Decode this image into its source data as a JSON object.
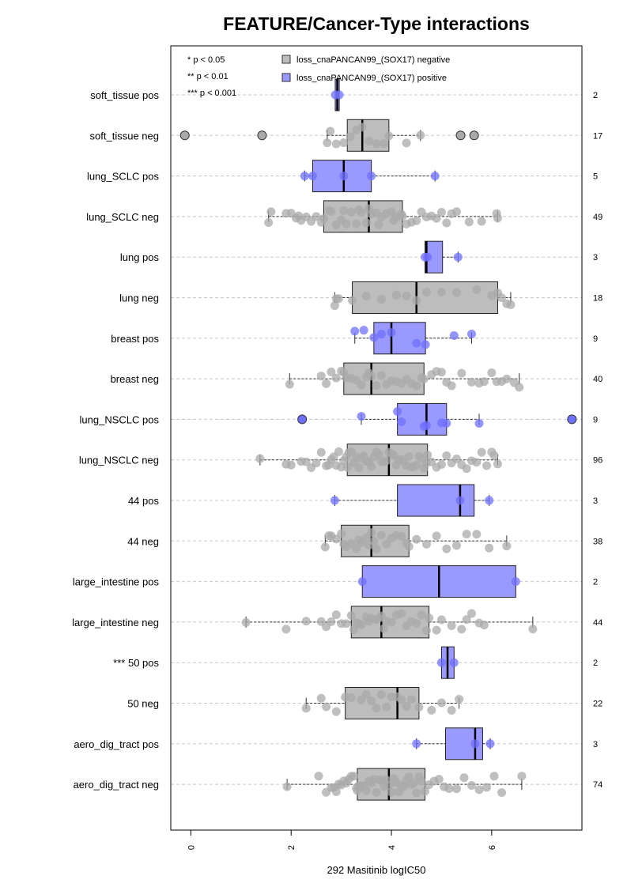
{
  "chart_data": {
    "type": "boxplot",
    "title": "FEATURE/Cancer-Type interactions",
    "xlabel": "292 Masitinib logIC50",
    "ylabel": "",
    "xlim": [
      -0.4,
      7.8
    ],
    "x_ticks": [
      "0",
      "2",
      "4",
      "6"
    ],
    "x_tick_values": [
      0,
      2,
      4,
      6
    ],
    "grid": "horizontal dashed",
    "legend_position": "top",
    "legend": [
      {
        "label": "loss_cnaPANCAN99_(SOX17) negative",
        "color": "#bdbdbd"
      },
      {
        "label": "loss_cnaPANCAN99_(SOX17) positive",
        "color": "#9999ff"
      }
    ],
    "significance_key": [
      "* p < 0.05",
      "** p < 0.01",
      "*** p < 0.001"
    ],
    "colors": {
      "negative_box": "#bdbdbd",
      "positive_box": "#9999ff",
      "negative_point": "#a9a9a9",
      "positive_point": "#7070ff"
    },
    "groups": [
      {
        "label": "soft_tissue pos",
        "group": "positive",
        "n": "2",
        "q1": 2.88,
        "median": 2.92,
        "q3": 2.96,
        "whisker_low": 2.88,
        "whisker_high": 2.96,
        "outliers": [],
        "points": [
          2.88,
          2.96
        ]
      },
      {
        "label": "soft_tissue neg",
        "group": "negative",
        "n": "17",
        "q1": 3.12,
        "median": 3.42,
        "q3": 3.95,
        "whisker_low": 2.72,
        "whisker_high": 4.58,
        "outliers": [
          -0.12,
          1.42,
          5.38,
          5.65
        ],
        "points": [
          2.72,
          2.78,
          3.05,
          3.18,
          3.3,
          3.42,
          3.55,
          3.7,
          3.85,
          3.95,
          4.3,
          4.58,
          2.9
        ]
      },
      {
        "label": "lung_SCLC pos",
        "group": "positive",
        "n": "5",
        "q1": 2.43,
        "median": 3.05,
        "q3": 3.6,
        "whisker_low": 2.27,
        "whisker_high": 4.87,
        "outliers": [],
        "points": [
          2.27,
          2.43,
          3.05,
          3.6,
          4.87
        ]
      },
      {
        "label": "lung_SCLC neg",
        "group": "negative",
        "n": "49",
        "q1": 2.65,
        "median": 3.55,
        "q3": 4.22,
        "whisker_low": 1.55,
        "whisker_high": 6.12,
        "outliers": [],
        "points": [
          1.55,
          1.6,
          1.9,
          2.0,
          2.1,
          2.15,
          2.2,
          2.3,
          2.4,
          2.5,
          2.6,
          2.65,
          2.75,
          2.8,
          2.9,
          3.0,
          3.05,
          3.1,
          3.2,
          3.3,
          3.35,
          3.4,
          3.5,
          3.55,
          3.6,
          3.7,
          3.75,
          3.8,
          3.9,
          4.0,
          4.05,
          4.1,
          4.2,
          4.22,
          4.3,
          4.4,
          4.5,
          4.6,
          4.7,
          4.8,
          4.9,
          5.0,
          5.1,
          5.2,
          5.3,
          5.55,
          5.8,
          6.1,
          6.12
        ]
      },
      {
        "label": "lung pos",
        "group": "positive",
        "n": "3",
        "q1": 4.67,
        "median": 4.7,
        "q3": 5.02,
        "whisker_low": 4.67,
        "whisker_high": 5.33,
        "outliers": [],
        "points": [
          4.67,
          4.72,
          5.33
        ]
      },
      {
        "label": "lung neg",
        "group": "negative",
        "n": "18",
        "q1": 3.22,
        "median": 4.5,
        "q3": 6.12,
        "whisker_low": 2.87,
        "whisker_high": 6.38,
        "outliers": [],
        "points": [
          2.87,
          2.9,
          2.95,
          3.22,
          3.5,
          3.8,
          4.1,
          4.3,
          4.5,
          4.7,
          5.0,
          5.3,
          5.7,
          6.0,
          6.12,
          6.2,
          6.3,
          6.38
        ]
      },
      {
        "label": "breast pos",
        "group": "positive",
        "n": "9",
        "q1": 3.65,
        "median": 4.0,
        "q3": 4.68,
        "whisker_low": 3.27,
        "whisker_high": 5.6,
        "outliers": [],
        "points": [
          3.27,
          3.45,
          3.65,
          3.8,
          4.0,
          4.5,
          4.68,
          5.25,
          5.6
        ]
      },
      {
        "label": "breast neg",
        "group": "negative",
        "n": "40",
        "q1": 3.05,
        "median": 3.6,
        "q3": 4.65,
        "whisker_low": 1.97,
        "whisker_high": 6.55,
        "outliers": [],
        "points": [
          1.97,
          2.6,
          2.7,
          2.8,
          2.9,
          3.0,
          3.05,
          3.1,
          3.2,
          3.3,
          3.4,
          3.5,
          3.55,
          3.6,
          3.7,
          3.8,
          3.9,
          4.0,
          4.1,
          4.2,
          4.3,
          4.4,
          4.5,
          4.6,
          4.65,
          4.8,
          4.9,
          5.0,
          5.1,
          5.2,
          5.4,
          5.6,
          5.75,
          5.85,
          6.0,
          6.1,
          6.2,
          6.3,
          6.45,
          6.55
        ]
      },
      {
        "label": "lung_NSCLC pos",
        "group": "positive",
        "n": "9",
        "q1": 4.12,
        "median": 4.7,
        "q3": 5.1,
        "whisker_low": 3.4,
        "whisker_high": 5.75,
        "outliers": [
          2.22,
          7.6
        ],
        "points": [
          3.4,
          4.12,
          4.2,
          4.65,
          4.7,
          5.0,
          5.1,
          5.75
        ]
      },
      {
        "label": "lung_NSCLC neg",
        "group": "negative",
        "n": "96",
        "q1": 3.12,
        "median": 3.95,
        "q3": 4.72,
        "whisker_low": 1.38,
        "whisker_high": 6.12,
        "outliers": [],
        "points": [
          1.38,
          1.9,
          2.0,
          2.2,
          2.3,
          2.4,
          2.5,
          2.6,
          2.7,
          2.75,
          2.8,
          2.85,
          2.9,
          2.95,
          3.0,
          3.05,
          3.1,
          3.12,
          3.15,
          3.2,
          3.25,
          3.3,
          3.35,
          3.4,
          3.45,
          3.5,
          3.55,
          3.6,
          3.65,
          3.7,
          3.75,
          3.8,
          3.85,
          3.9,
          3.95,
          4.0,
          4.05,
          4.1,
          4.15,
          4.2,
          4.25,
          4.3,
          4.35,
          4.4,
          4.45,
          4.5,
          4.55,
          4.6,
          4.65,
          4.7,
          4.72,
          4.8,
          4.9,
          5.0,
          5.1,
          5.2,
          5.3,
          5.4,
          5.5,
          5.6,
          5.7,
          5.8,
          5.9,
          6.0,
          6.05,
          6.12
        ]
      },
      {
        "label": "44 pos",
        "group": "positive",
        "n": "3",
        "q1": 4.12,
        "median": 5.37,
        "q3": 5.65,
        "whisker_low": 2.87,
        "whisker_high": 5.95,
        "outliers": [],
        "points": [
          2.87,
          5.37,
          5.95
        ]
      },
      {
        "label": "44 neg",
        "group": "negative",
        "n": "38",
        "q1": 3.0,
        "median": 3.6,
        "q3": 4.35,
        "whisker_low": 2.68,
        "whisker_high": 6.3,
        "outliers": [],
        "points": [
          2.68,
          2.75,
          2.8,
          2.9,
          3.0,
          3.05,
          3.1,
          3.2,
          3.3,
          3.35,
          3.4,
          3.5,
          3.55,
          3.6,
          3.65,
          3.7,
          3.8,
          3.9,
          4.0,
          4.1,
          4.2,
          4.3,
          4.35,
          4.5,
          4.7,
          4.9,
          5.1,
          5.3,
          5.5,
          5.7,
          5.95,
          6.3
        ]
      },
      {
        "label": "large_intestine pos",
        "group": "positive",
        "n": "2",
        "q1": 3.42,
        "median": 4.95,
        "q3": 6.48,
        "whisker_low": 3.42,
        "whisker_high": 6.48,
        "outliers": [],
        "points": [
          3.42,
          6.48
        ]
      },
      {
        "label": "large_intestine neg",
        "group": "negative",
        "n": "44",
        "q1": 3.2,
        "median": 3.8,
        "q3": 4.75,
        "whisker_low": 1.1,
        "whisker_high": 6.82,
        "outliers": [],
        "points": [
          1.1,
          1.9,
          2.3,
          2.6,
          2.7,
          2.8,
          2.9,
          3.0,
          3.1,
          3.2,
          3.25,
          3.3,
          3.35,
          3.4,
          3.5,
          3.55,
          3.6,
          3.7,
          3.75,
          3.8,
          3.85,
          3.9,
          4.0,
          4.1,
          4.2,
          4.3,
          4.4,
          4.5,
          4.6,
          4.7,
          4.75,
          4.9,
          5.0,
          5.2,
          5.4,
          5.5,
          5.6,
          5.75,
          5.85,
          6.82
        ]
      },
      {
        "label": "*** 50 pos",
        "group": "positive",
        "n": "2",
        "q1": 5.0,
        "median": 5.12,
        "q3": 5.25,
        "whisker_low": 5.0,
        "whisker_high": 5.25,
        "outliers": [],
        "points": [
          5.0,
          5.25
        ]
      },
      {
        "label": "50 neg",
        "group": "negative",
        "n": "22",
        "q1": 3.08,
        "median": 4.12,
        "q3": 4.55,
        "whisker_low": 2.3,
        "whisker_high": 5.35,
        "outliers": [],
        "points": [
          2.3,
          2.6,
          2.7,
          2.9,
          3.08,
          3.2,
          3.4,
          3.5,
          3.7,
          3.9,
          4.0,
          4.12,
          4.3,
          4.4,
          4.55,
          4.8,
          5.0,
          5.2,
          5.35,
          3.6,
          3.8,
          4.2
        ]
      },
      {
        "label": "aero_dig_tract pos",
        "group": "positive",
        "n": "3",
        "q1": 5.08,
        "median": 5.67,
        "q3": 5.82,
        "whisker_low": 4.5,
        "whisker_high": 5.97,
        "outliers": [],
        "points": [
          4.5,
          5.67,
          5.97
        ]
      },
      {
        "label": "aero_dig_tract neg",
        "group": "negative",
        "n": "74",
        "q1": 3.32,
        "median": 3.95,
        "q3": 4.67,
        "whisker_low": 1.92,
        "whisker_high": 6.6,
        "outliers": [],
        "points": [
          1.92,
          2.55,
          2.7,
          2.8,
          2.85,
          2.9,
          2.95,
          3.0,
          3.05,
          3.1,
          3.15,
          3.2,
          3.25,
          3.3,
          3.32,
          3.35,
          3.4,
          3.45,
          3.5,
          3.55,
          3.6,
          3.65,
          3.7,
          3.75,
          3.8,
          3.85,
          3.9,
          3.95,
          4.0,
          4.05,
          4.1,
          4.15,
          4.2,
          4.25,
          4.3,
          4.35,
          4.4,
          4.45,
          4.5,
          4.55,
          4.6,
          4.67,
          4.75,
          4.85,
          4.95,
          5.05,
          5.15,
          5.3,
          5.45,
          5.6,
          5.75,
          5.9,
          6.05,
          6.2,
          6.6
        ]
      }
    ]
  }
}
